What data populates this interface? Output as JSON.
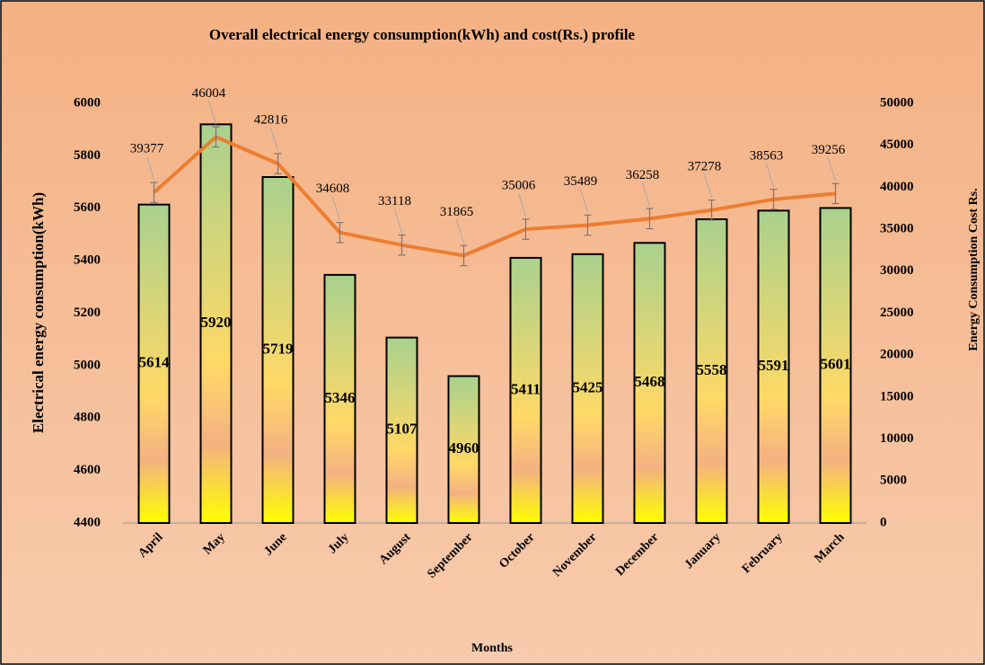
{
  "chart_data": {
    "type": "bar-line",
    "title": "Overall electrical energy consumption(kWh) and cost(Rs.) profile",
    "xlabel": "Months",
    "ylabel": "Electrical energy consumption(kWh)",
    "y2label": "Energy Consumption  Cost Rs.",
    "categories": [
      "April",
      "May",
      "June",
      "July",
      "August",
      "September",
      "October",
      "November",
      "December",
      "January",
      "February",
      "March"
    ],
    "series": [
      {
        "type": "bar",
        "colors": [
          "#a9d18e",
          "#ffd966",
          "#f4b183",
          "#ffff00"
        ],
        "values": [
          5614,
          5920,
          5719,
          5346,
          5107,
          4960,
          5411,
          5425,
          5468,
          5558,
          5591,
          5601
        ]
      },
      {
        "type": "line",
        "axis": "y2",
        "color": "#ed7d31",
        "values": [
          39377,
          46004,
          42816,
          34608,
          33118,
          31865,
          35006,
          35489,
          36258,
          37278,
          38563,
          39256
        ],
        "errors": [
          1200,
          1200,
          1200,
          1200,
          1200,
          1200,
          1200,
          1200,
          1200,
          1200,
          1200,
          1200
        ]
      }
    ],
    "ylim": [
      4400,
      6000
    ],
    "yticks": [
      4400,
      4600,
      4800,
      5000,
      5200,
      5400,
      5600,
      5800,
      6000
    ],
    "y2lim": [
      0,
      50000
    ],
    "y2ticks": [
      0,
      5000,
      10000,
      15000,
      20000,
      25000,
      30000,
      35000,
      40000,
      45000,
      50000
    ]
  }
}
